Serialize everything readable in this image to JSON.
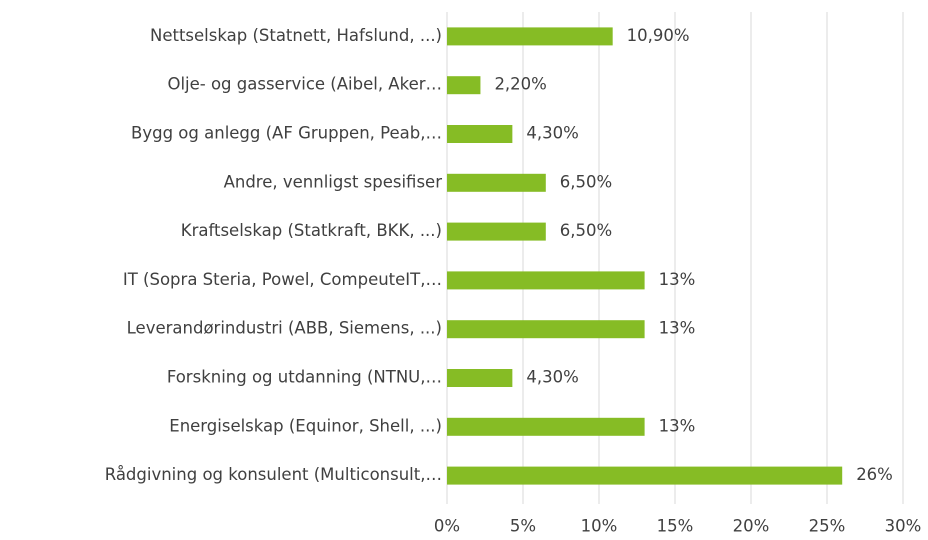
{
  "chart_data": {
    "type": "barh",
    "categories": [
      "Nettselskap (Statnett, Hafslund, ...)",
      "Olje- og gasservice (Aibel, Aker…",
      "Bygg og anlegg (AF Gruppen, Peab,…",
      "Andre, vennligst spesifiser",
      "Kraftselskap (Statkraft, BKK, ...)",
      "IT (Sopra Steria, Powel, CompeuteIT,…",
      "Leverandørindustri (ABB, Siemens, ...)",
      "Forskning og utdanning (NTNU,…",
      "Energiselskap (Equinor, Shell, ...)",
      "Rådgivning og konsulent (Multiconsult,…"
    ],
    "values": [
      10.9,
      2.2,
      4.3,
      6.5,
      6.5,
      13,
      13,
      4.3,
      13,
      26
    ],
    "value_labels": [
      "10,90%",
      "2,20%",
      "4,30%",
      "6,50%",
      "6,50%",
      "13%",
      "13%",
      "4,30%",
      "13%",
      "26%"
    ],
    "color": "#86bc25",
    "xlim": [
      0,
      30
    ],
    "xticks": [
      {
        "value": 0,
        "label": "0%"
      },
      {
        "value": 5,
        "label": "5%"
      },
      {
        "value": 10,
        "label": "10%"
      },
      {
        "value": 15,
        "label": "15%"
      },
      {
        "value": 20,
        "label": "20%"
      },
      {
        "value": 25,
        "label": "25%"
      },
      {
        "value": 30,
        "label": "30%"
      }
    ],
    "grid": true
  }
}
